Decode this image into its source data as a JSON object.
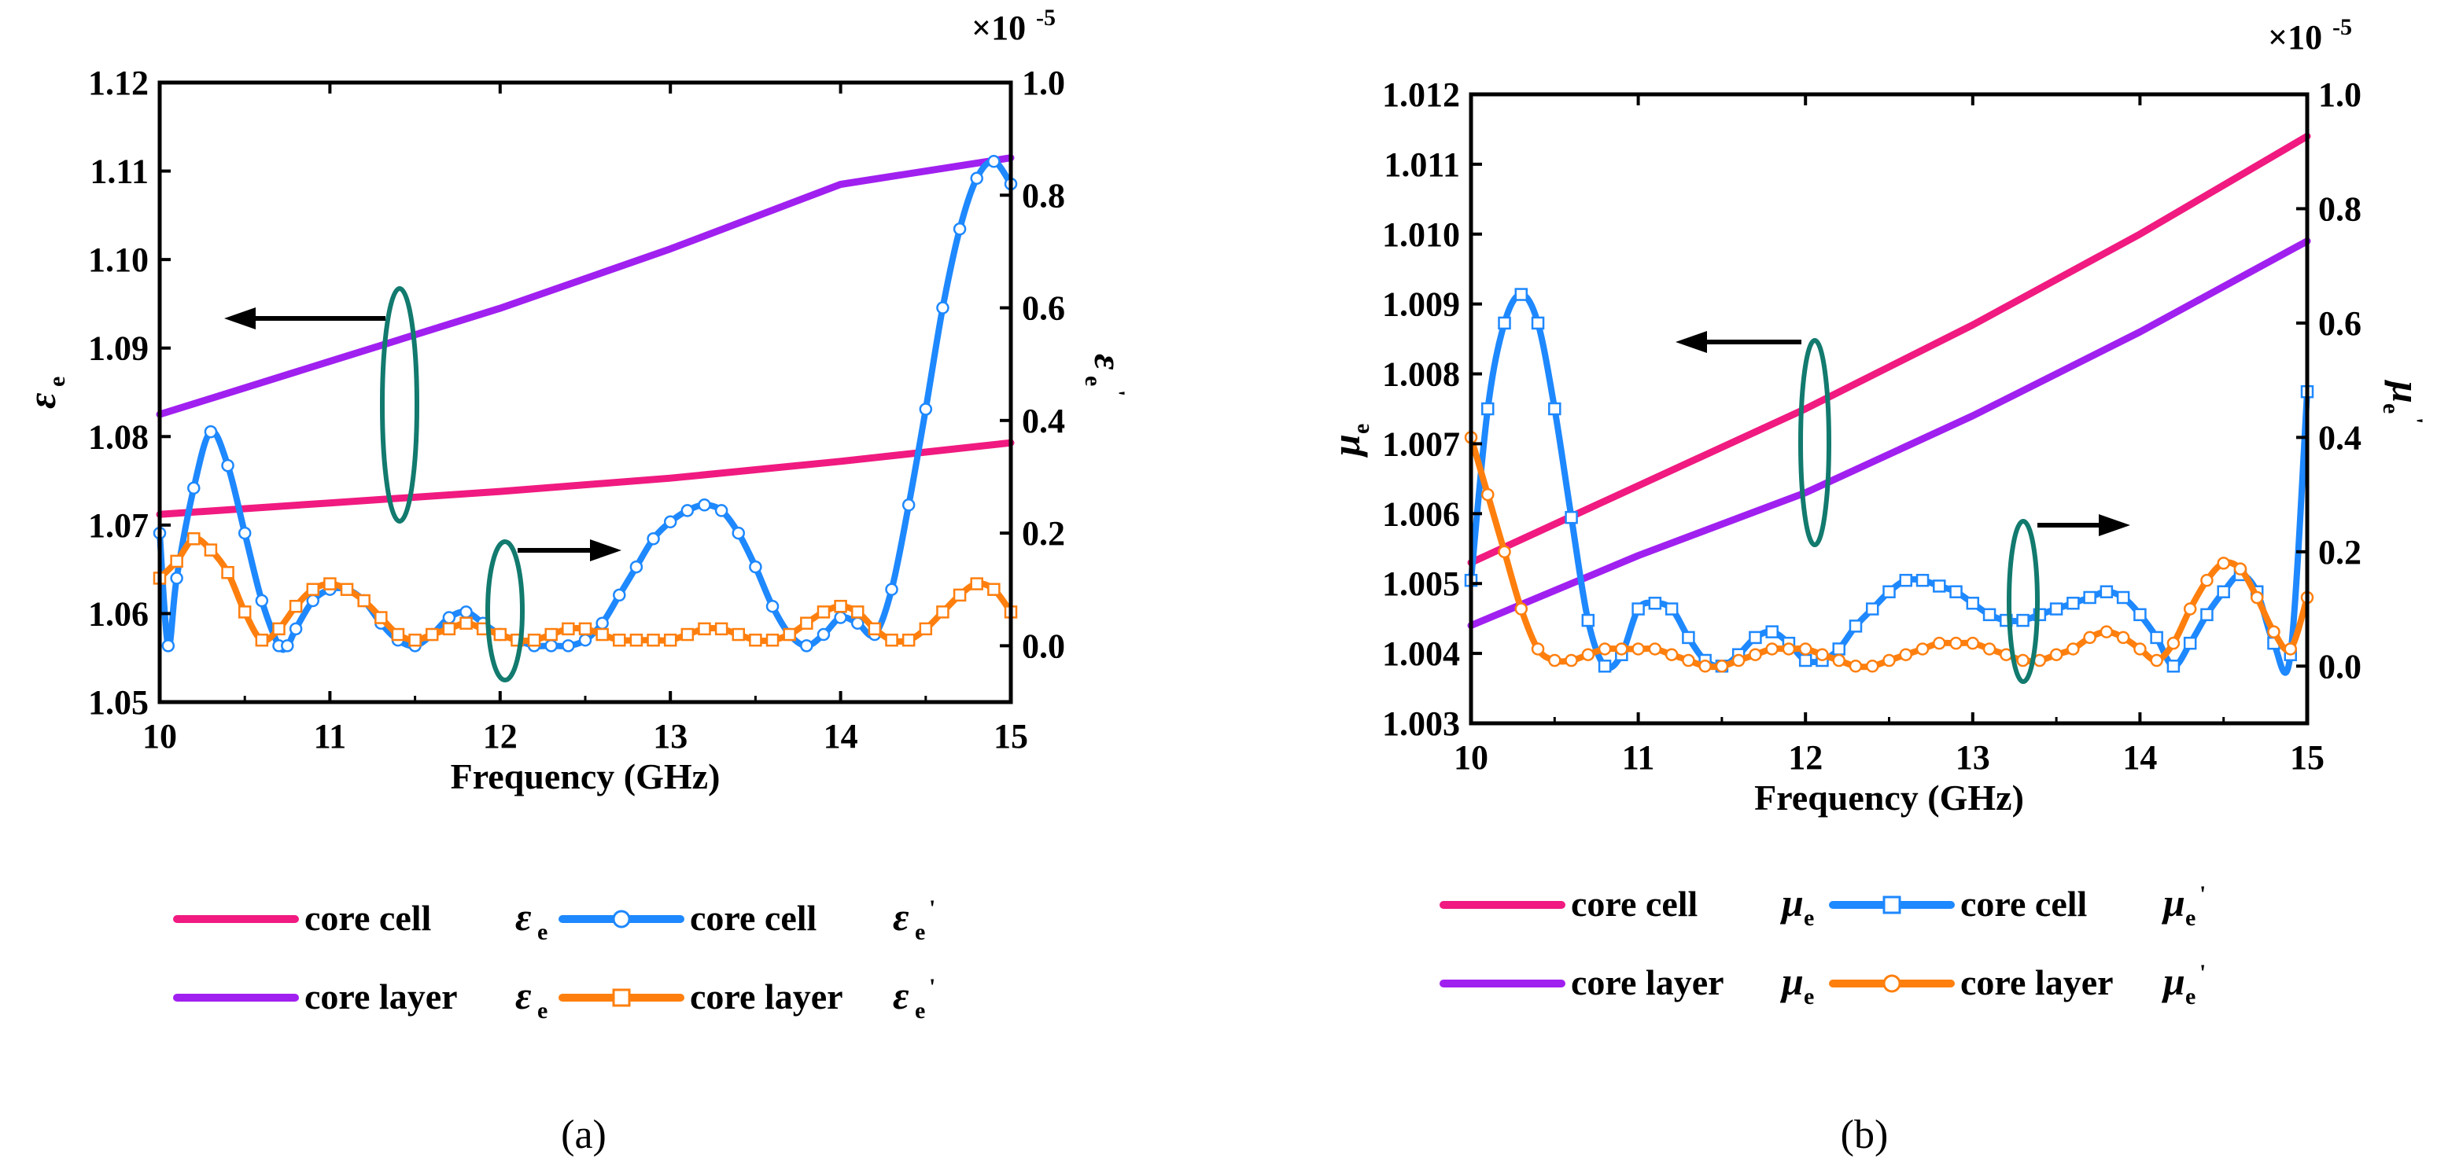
{
  "colors": {
    "core_cell_main": "#f01a80",
    "core_layer_main": "#a020f0",
    "core_cell_prime": "#1e88ff",
    "core_layer_prime": "#ff7f0e",
    "ellipse": "#127a6e",
    "axis": "#000000"
  },
  "chart_data": [
    {
      "type": "line",
      "caption": "(a)",
      "xlabel": "Frequency (GHz)",
      "x_ticks": [
        "10",
        "11",
        "12",
        "13",
        "14",
        "15"
      ],
      "xlim": [
        10,
        15
      ],
      "ylabel_left": {
        "symbol": "ε",
        "sub": "e",
        "prime": ""
      },
      "ylabel_right": {
        "symbol": "ε",
        "sub": "e",
        "prime": "'"
      },
      "ylim_left": [
        1.05,
        1.12
      ],
      "y_ticks_left": [
        "1.05",
        "1.06",
        "1.07",
        "1.08",
        "1.09",
        "1.10",
        "1.11",
        "1.12"
      ],
      "ylim_right": [
        -0.1,
        1.0
      ],
      "y_ticks_right": [
        "0.0",
        "0.2",
        "0.4",
        "0.6",
        "0.8",
        "1.0"
      ],
      "y_ticks_right_values": [
        0.0,
        0.2,
        0.4,
        0.6,
        0.8,
        1.0
      ],
      "right_multiplier": "×10",
      "right_multiplier_exp": "-5",
      "series": [
        {
          "name": "core cell",
          "symbol": "ε",
          "sub": "e",
          "prime": "",
          "axis": "left",
          "marker": "none",
          "color_key": "core_cell_main",
          "x": [
            10,
            11,
            12,
            13,
            14,
            15
          ],
          "y": [
            1.0712,
            1.0725,
            1.0738,
            1.0753,
            1.0772,
            1.0793
          ]
        },
        {
          "name": "core layer",
          "symbol": "ε",
          "sub": "e",
          "prime": "",
          "axis": "left",
          "marker": "none",
          "color_key": "core_layer_main",
          "x": [
            10,
            11,
            12,
            13,
            14,
            15
          ],
          "y": [
            1.0825,
            1.0885,
            1.0945,
            1.1012,
            1.1085,
            1.1115
          ]
        },
        {
          "name": "core cell",
          "symbol": "ε",
          "sub": "e",
          "prime": "'",
          "axis": "right",
          "marker": "circle",
          "color_key": "core_cell_prime",
          "x": [
            10.0,
            10.05,
            10.1,
            10.2,
            10.3,
            10.4,
            10.5,
            10.6,
            10.7,
            10.75,
            10.8,
            10.9,
            11.0,
            11.1,
            11.2,
            11.3,
            11.4,
            11.5,
            11.6,
            11.7,
            11.8,
            11.9,
            12.0,
            12.1,
            12.2,
            12.3,
            12.4,
            12.5,
            12.6,
            12.7,
            12.8,
            12.9,
            13.0,
            13.1,
            13.2,
            13.3,
            13.4,
            13.5,
            13.6,
            13.7,
            13.8,
            13.9,
            14.0,
            14.1,
            14.2,
            14.3,
            14.4,
            14.5,
            14.6,
            14.7,
            14.8,
            14.9,
            15.0
          ],
          "y": [
            0.2,
            0.0,
            0.12,
            0.28,
            0.38,
            0.32,
            0.2,
            0.08,
            0.0,
            0.0,
            0.03,
            0.08,
            0.1,
            0.1,
            0.08,
            0.04,
            0.01,
            0.0,
            0.02,
            0.05,
            0.06,
            0.04,
            0.02,
            0.01,
            0.0,
            0.0,
            0.0,
            0.01,
            0.04,
            0.09,
            0.14,
            0.19,
            0.22,
            0.24,
            0.25,
            0.24,
            0.2,
            0.14,
            0.07,
            0.02,
            0.0,
            0.02,
            0.05,
            0.04,
            0.02,
            0.1,
            0.25,
            0.42,
            0.6,
            0.74,
            0.83,
            0.86,
            0.82
          ]
        },
        {
          "name": "core layer",
          "symbol": "ε",
          "sub": "e",
          "prime": "'",
          "axis": "right",
          "marker": "square",
          "color_key": "core_layer_prime",
          "x": [
            10.0,
            10.1,
            10.2,
            10.3,
            10.4,
            10.5,
            10.6,
            10.7,
            10.8,
            10.9,
            11.0,
            11.1,
            11.2,
            11.3,
            11.4,
            11.5,
            11.6,
            11.7,
            11.8,
            11.9,
            12.0,
            12.1,
            12.2,
            12.3,
            12.4,
            12.5,
            12.6,
            12.7,
            12.8,
            12.9,
            13.0,
            13.1,
            13.2,
            13.3,
            13.4,
            13.5,
            13.6,
            13.7,
            13.8,
            13.9,
            14.0,
            14.1,
            14.2,
            14.3,
            14.4,
            14.5,
            14.6,
            14.7,
            14.8,
            14.9,
            15.0
          ],
          "y": [
            0.12,
            0.15,
            0.19,
            0.17,
            0.13,
            0.06,
            0.01,
            0.03,
            0.07,
            0.1,
            0.11,
            0.1,
            0.08,
            0.05,
            0.02,
            0.01,
            0.02,
            0.03,
            0.04,
            0.03,
            0.02,
            0.01,
            0.01,
            0.02,
            0.03,
            0.03,
            0.02,
            0.01,
            0.01,
            0.01,
            0.01,
            0.02,
            0.03,
            0.03,
            0.02,
            0.01,
            0.01,
            0.02,
            0.04,
            0.06,
            0.07,
            0.06,
            0.03,
            0.01,
            0.01,
            0.03,
            0.06,
            0.09,
            0.11,
            0.1,
            0.06
          ]
        }
      ],
      "legend": [
        {
          "label": "core cell",
          "symbol": "ε",
          "sub": "e",
          "prime": "",
          "color_key": "core_cell_main",
          "marker": "none"
        },
        {
          "label": "core cell",
          "symbol": "ε",
          "sub": "e",
          "prime": "'",
          "color_key": "core_cell_prime",
          "marker": "circle"
        },
        {
          "label": "core layer",
          "symbol": "ε",
          "sub": "e",
          "prime": "",
          "color_key": "core_layer_main",
          "marker": "none"
        },
        {
          "label": "core layer",
          "symbol": "ε",
          "sub": "e",
          "prime": "'",
          "color_key": "core_layer_prime",
          "marker": "square"
        }
      ],
      "legend_placement": "below"
    },
    {
      "type": "line",
      "caption": "(b)",
      "xlabel": "Frequency (GHz)",
      "x_ticks": [
        "10",
        "11",
        "12",
        "13",
        "14",
        "15"
      ],
      "xlim": [
        10,
        15
      ],
      "ylabel_left": {
        "symbol": "μ",
        "sub": "e",
        "prime": ""
      },
      "ylabel_right": {
        "symbol": "μ",
        "sub": "e",
        "prime": "'"
      },
      "ylim_left": [
        1.003,
        1.012
      ],
      "y_ticks_left": [
        "1.003",
        "1.004",
        "1.005",
        "1.006",
        "1.007",
        "1.008",
        "1.009",
        "1.010",
        "1.011",
        "1.012"
      ],
      "ylim_right": [
        -0.1,
        1.0
      ],
      "y_ticks_right": [
        "0.0",
        "0.2",
        "0.4",
        "0.6",
        "0.8",
        "1.0"
      ],
      "y_ticks_right_values": [
        0.0,
        0.2,
        0.4,
        0.6,
        0.8,
        1.0
      ],
      "right_multiplier": "×10",
      "right_multiplier_exp": "-5",
      "series": [
        {
          "name": "core cell",
          "symbol": "μ",
          "sub": "e",
          "prime": "",
          "axis": "left",
          "marker": "none",
          "color_key": "core_cell_main",
          "x": [
            10,
            11,
            12,
            13,
            14,
            15
          ],
          "y": [
            1.0053,
            1.0064,
            1.0075,
            1.0087,
            1.01,
            1.0114
          ]
        },
        {
          "name": "core layer",
          "symbol": "μ",
          "sub": "e",
          "prime": "",
          "axis": "left",
          "marker": "none",
          "color_key": "core_layer_main",
          "x": [
            10,
            11,
            12,
            13,
            14,
            15
          ],
          "y": [
            1.0044,
            1.0054,
            1.0063,
            1.0074,
            1.0086,
            1.0099
          ]
        },
        {
          "name": "core cell",
          "symbol": "μ",
          "sub": "e",
          "prime": "'",
          "axis": "right",
          "marker": "square",
          "color_key": "core_cell_prime",
          "x": [
            10.0,
            10.1,
            10.2,
            10.3,
            10.4,
            10.5,
            10.6,
            10.7,
            10.8,
            10.9,
            11.0,
            11.1,
            11.2,
            11.3,
            11.4,
            11.5,
            11.6,
            11.7,
            11.8,
            11.9,
            12.0,
            12.1,
            12.2,
            12.3,
            12.4,
            12.5,
            12.6,
            12.7,
            12.8,
            12.9,
            13.0,
            13.1,
            13.2,
            13.3,
            13.4,
            13.5,
            13.6,
            13.7,
            13.8,
            13.9,
            14.0,
            14.1,
            14.2,
            14.3,
            14.4,
            14.5,
            14.6,
            14.7,
            14.8,
            14.9,
            15.0
          ],
          "y": [
            0.15,
            0.45,
            0.6,
            0.65,
            0.6,
            0.45,
            0.26,
            0.08,
            0.0,
            0.02,
            0.1,
            0.11,
            0.1,
            0.05,
            0.01,
            0.0,
            0.02,
            0.05,
            0.06,
            0.04,
            0.01,
            0.01,
            0.03,
            0.07,
            0.1,
            0.13,
            0.15,
            0.15,
            0.14,
            0.13,
            0.11,
            0.09,
            0.08,
            0.08,
            0.09,
            0.1,
            0.11,
            0.12,
            0.13,
            0.12,
            0.09,
            0.05,
            0.0,
            0.04,
            0.09,
            0.13,
            0.16,
            0.13,
            0.04,
            0.02,
            0.48
          ]
        },
        {
          "name": "core layer",
          "symbol": "μ",
          "sub": "e",
          "prime": "'",
          "axis": "right",
          "marker": "circle",
          "color_key": "core_layer_prime",
          "x": [
            10.0,
            10.1,
            10.2,
            10.3,
            10.4,
            10.5,
            10.6,
            10.7,
            10.8,
            10.9,
            11.0,
            11.1,
            11.2,
            11.3,
            11.4,
            11.5,
            11.6,
            11.7,
            11.8,
            11.9,
            12.0,
            12.1,
            12.2,
            12.3,
            12.4,
            12.5,
            12.6,
            12.7,
            12.8,
            12.9,
            13.0,
            13.1,
            13.2,
            13.3,
            13.4,
            13.5,
            13.6,
            13.7,
            13.8,
            13.9,
            14.0,
            14.1,
            14.2,
            14.3,
            14.4,
            14.5,
            14.6,
            14.7,
            14.8,
            14.9,
            15.0
          ],
          "y": [
            0.4,
            0.3,
            0.2,
            0.1,
            0.03,
            0.01,
            0.01,
            0.02,
            0.03,
            0.03,
            0.03,
            0.03,
            0.02,
            0.01,
            0.0,
            0.0,
            0.01,
            0.02,
            0.03,
            0.03,
            0.03,
            0.02,
            0.01,
            0.0,
            0.0,
            0.01,
            0.02,
            0.03,
            0.04,
            0.04,
            0.04,
            0.03,
            0.02,
            0.01,
            0.01,
            0.02,
            0.03,
            0.05,
            0.06,
            0.05,
            0.03,
            0.01,
            0.04,
            0.1,
            0.15,
            0.18,
            0.17,
            0.12,
            0.06,
            0.03,
            0.12
          ]
        }
      ],
      "legend": [
        {
          "label": "core cell",
          "symbol": "μ",
          "sub": "e",
          "prime": "",
          "color_key": "core_cell_main",
          "marker": "none"
        },
        {
          "label": "core cell",
          "symbol": "μ",
          "sub": "e",
          "prime": "'",
          "color_key": "core_cell_prime",
          "marker": "square"
        },
        {
          "label": "core layer",
          "symbol": "μ",
          "sub": "e",
          "prime": "",
          "color_key": "core_layer_main",
          "marker": "none"
        },
        {
          "label": "core layer",
          "symbol": "μ",
          "sub": "e",
          "prime": "'",
          "color_key": "core_layer_prime",
          "marker": "circle"
        }
      ],
      "legend_placement": "below"
    }
  ]
}
